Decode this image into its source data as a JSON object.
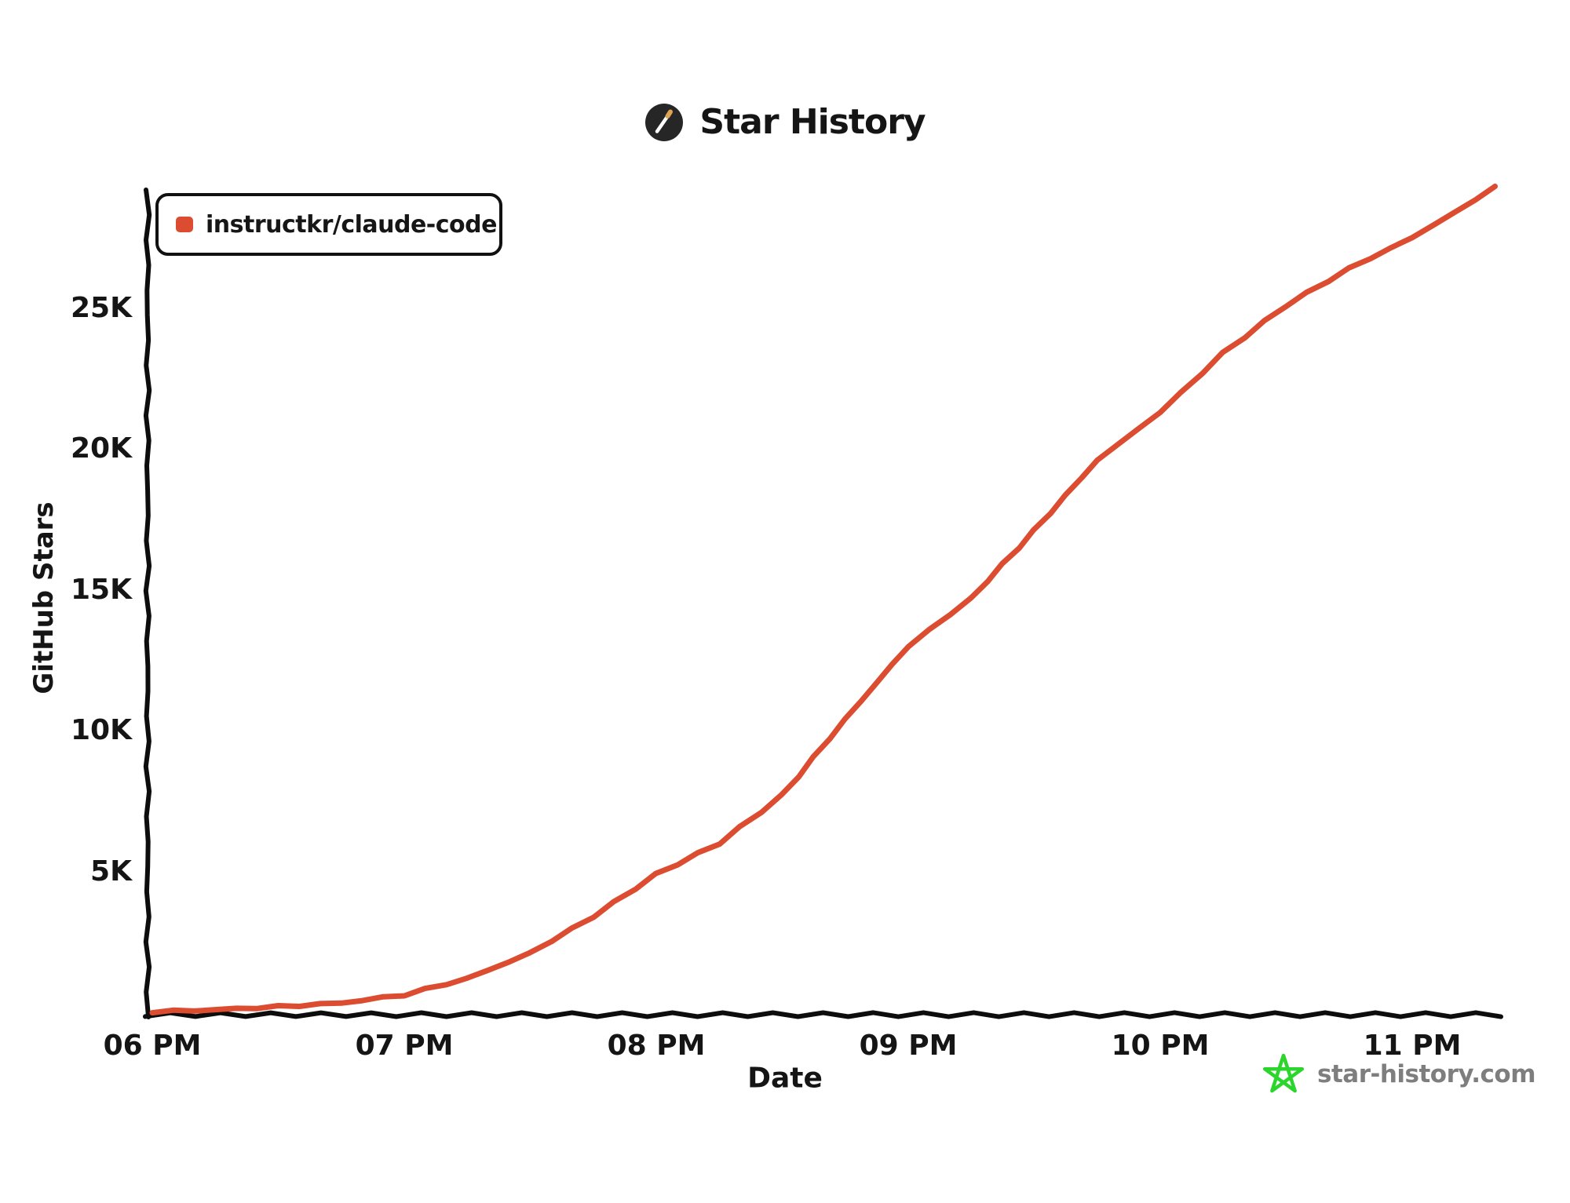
{
  "header": {
    "title": "Star History",
    "logo_bg_color": "#262626",
    "logo_wand_color": "#ffffff",
    "logo_wand_tip_color": "#DFA356"
  },
  "legend": {
    "series_label": "instructkr/claude-code",
    "marker_color": "#DB4C30"
  },
  "footer": {
    "site_label": "star-history.com",
    "text_color": "#7E7E7E",
    "star_icon_color": "#2BD52B"
  },
  "chart_data": {
    "type": "line",
    "title": "Star History",
    "xlabel": "Date",
    "ylabel": "GitHub Stars",
    "grid": false,
    "legend_position": "top-left",
    "axis_color": "#0d0d0d",
    "x_unit": "time of day",
    "x_tick_labels": [
      "06 PM",
      "07 PM",
      "08 PM",
      "09 PM",
      "10 PM",
      "11 PM"
    ],
    "x_tick_hours": [
      18,
      19,
      20,
      21,
      22,
      23
    ],
    "y_tick_labels": [
      "5K",
      "10K",
      "15K",
      "20K",
      "25K"
    ],
    "y_tick_values": [
      5000,
      10000,
      15000,
      20000,
      25000
    ],
    "xlim_hours": [
      18,
      23.37
    ],
    "ylim": [
      0,
      29300
    ],
    "series": [
      {
        "name": "instructkr/claude-code",
        "color": "#DB4C30",
        "points": [
          [
            18.0,
            20
          ],
          [
            18.25,
            90
          ],
          [
            18.5,
            200
          ],
          [
            18.75,
            330
          ],
          [
            19.0,
            620
          ],
          [
            19.25,
            1200
          ],
          [
            19.5,
            2100
          ],
          [
            19.75,
            3400
          ],
          [
            20.0,
            4900
          ],
          [
            20.25,
            6000
          ],
          [
            20.5,
            7700
          ],
          [
            20.75,
            10400
          ],
          [
            21.0,
            13000
          ],
          [
            21.25,
            14700
          ],
          [
            21.5,
            17100
          ],
          [
            21.75,
            19600
          ],
          [
            22.0,
            21300
          ],
          [
            22.25,
            23400
          ],
          [
            22.5,
            25100
          ],
          [
            22.75,
            26400
          ],
          [
            23.0,
            27500
          ],
          [
            23.17,
            28400
          ],
          [
            23.33,
            29300
          ]
        ]
      }
    ]
  }
}
